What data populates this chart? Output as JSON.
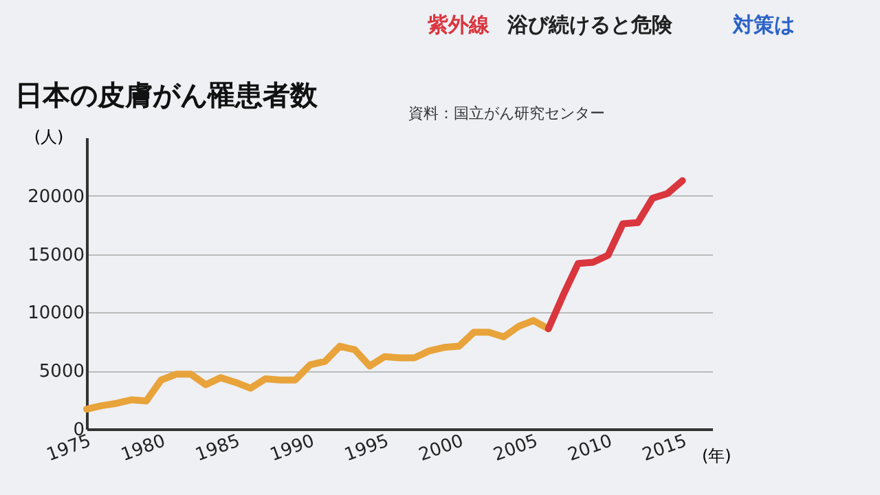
{
  "chart_data": {
    "type": "line",
    "title": "日本の皮膚がん罹患者数",
    "annotations": [
      "資料：国立がん研究センター",
      "紫外線",
      "浴び続けると危険",
      "対策は"
    ],
    "xlabel": "(年)",
    "ylabel": "(人)",
    "series": [
      {
        "color": "#e8a33a",
        "x": [
          1975,
          1976,
          1977,
          1978,
          1979,
          1980,
          1981,
          1982,
          1983,
          1984,
          1985,
          1986,
          1987,
          1988,
          1989,
          1990,
          1991,
          1992,
          1993,
          1994,
          1995,
          1996,
          1997,
          1998,
          1999,
          2000,
          2001,
          2002,
          2003,
          2004,
          2005,
          2006
        ],
        "values": [
          1700,
          2000,
          2200,
          2500,
          2400,
          4200,
          4700,
          4700,
          3800,
          4400,
          4000,
          3500,
          4300,
          4200,
          4200,
          5500,
          5800,
          7100,
          6800,
          5400,
          6200,
          6100,
          6100,
          6700,
          7000,
          7100,
          8300,
          8300,
          7900,
          8800,
          9300,
          8600
        ]
      },
      {
        "color": "#d9363e",
        "x": [
          2006,
          2007,
          2008,
          2009,
          2010,
          2011,
          2012,
          2013,
          2014,
          2015
        ],
        "values": [
          8600,
          11500,
          14200,
          14300,
          14900,
          17600,
          17700,
          19800,
          20200,
          21300
        ]
      }
    ],
    "xlim": [
      1975,
      2017
    ],
    "xticks": [
      1975,
      1980,
      1985,
      1990,
      1995,
      2000,
      2005,
      2010,
      2015
    ],
    "ylim": [
      0,
      25000
    ],
    "yticks": [
      0,
      5000,
      10000,
      15000,
      20000
    ],
    "grid": "y",
    "marker": "none",
    "line_style": "solid"
  }
}
